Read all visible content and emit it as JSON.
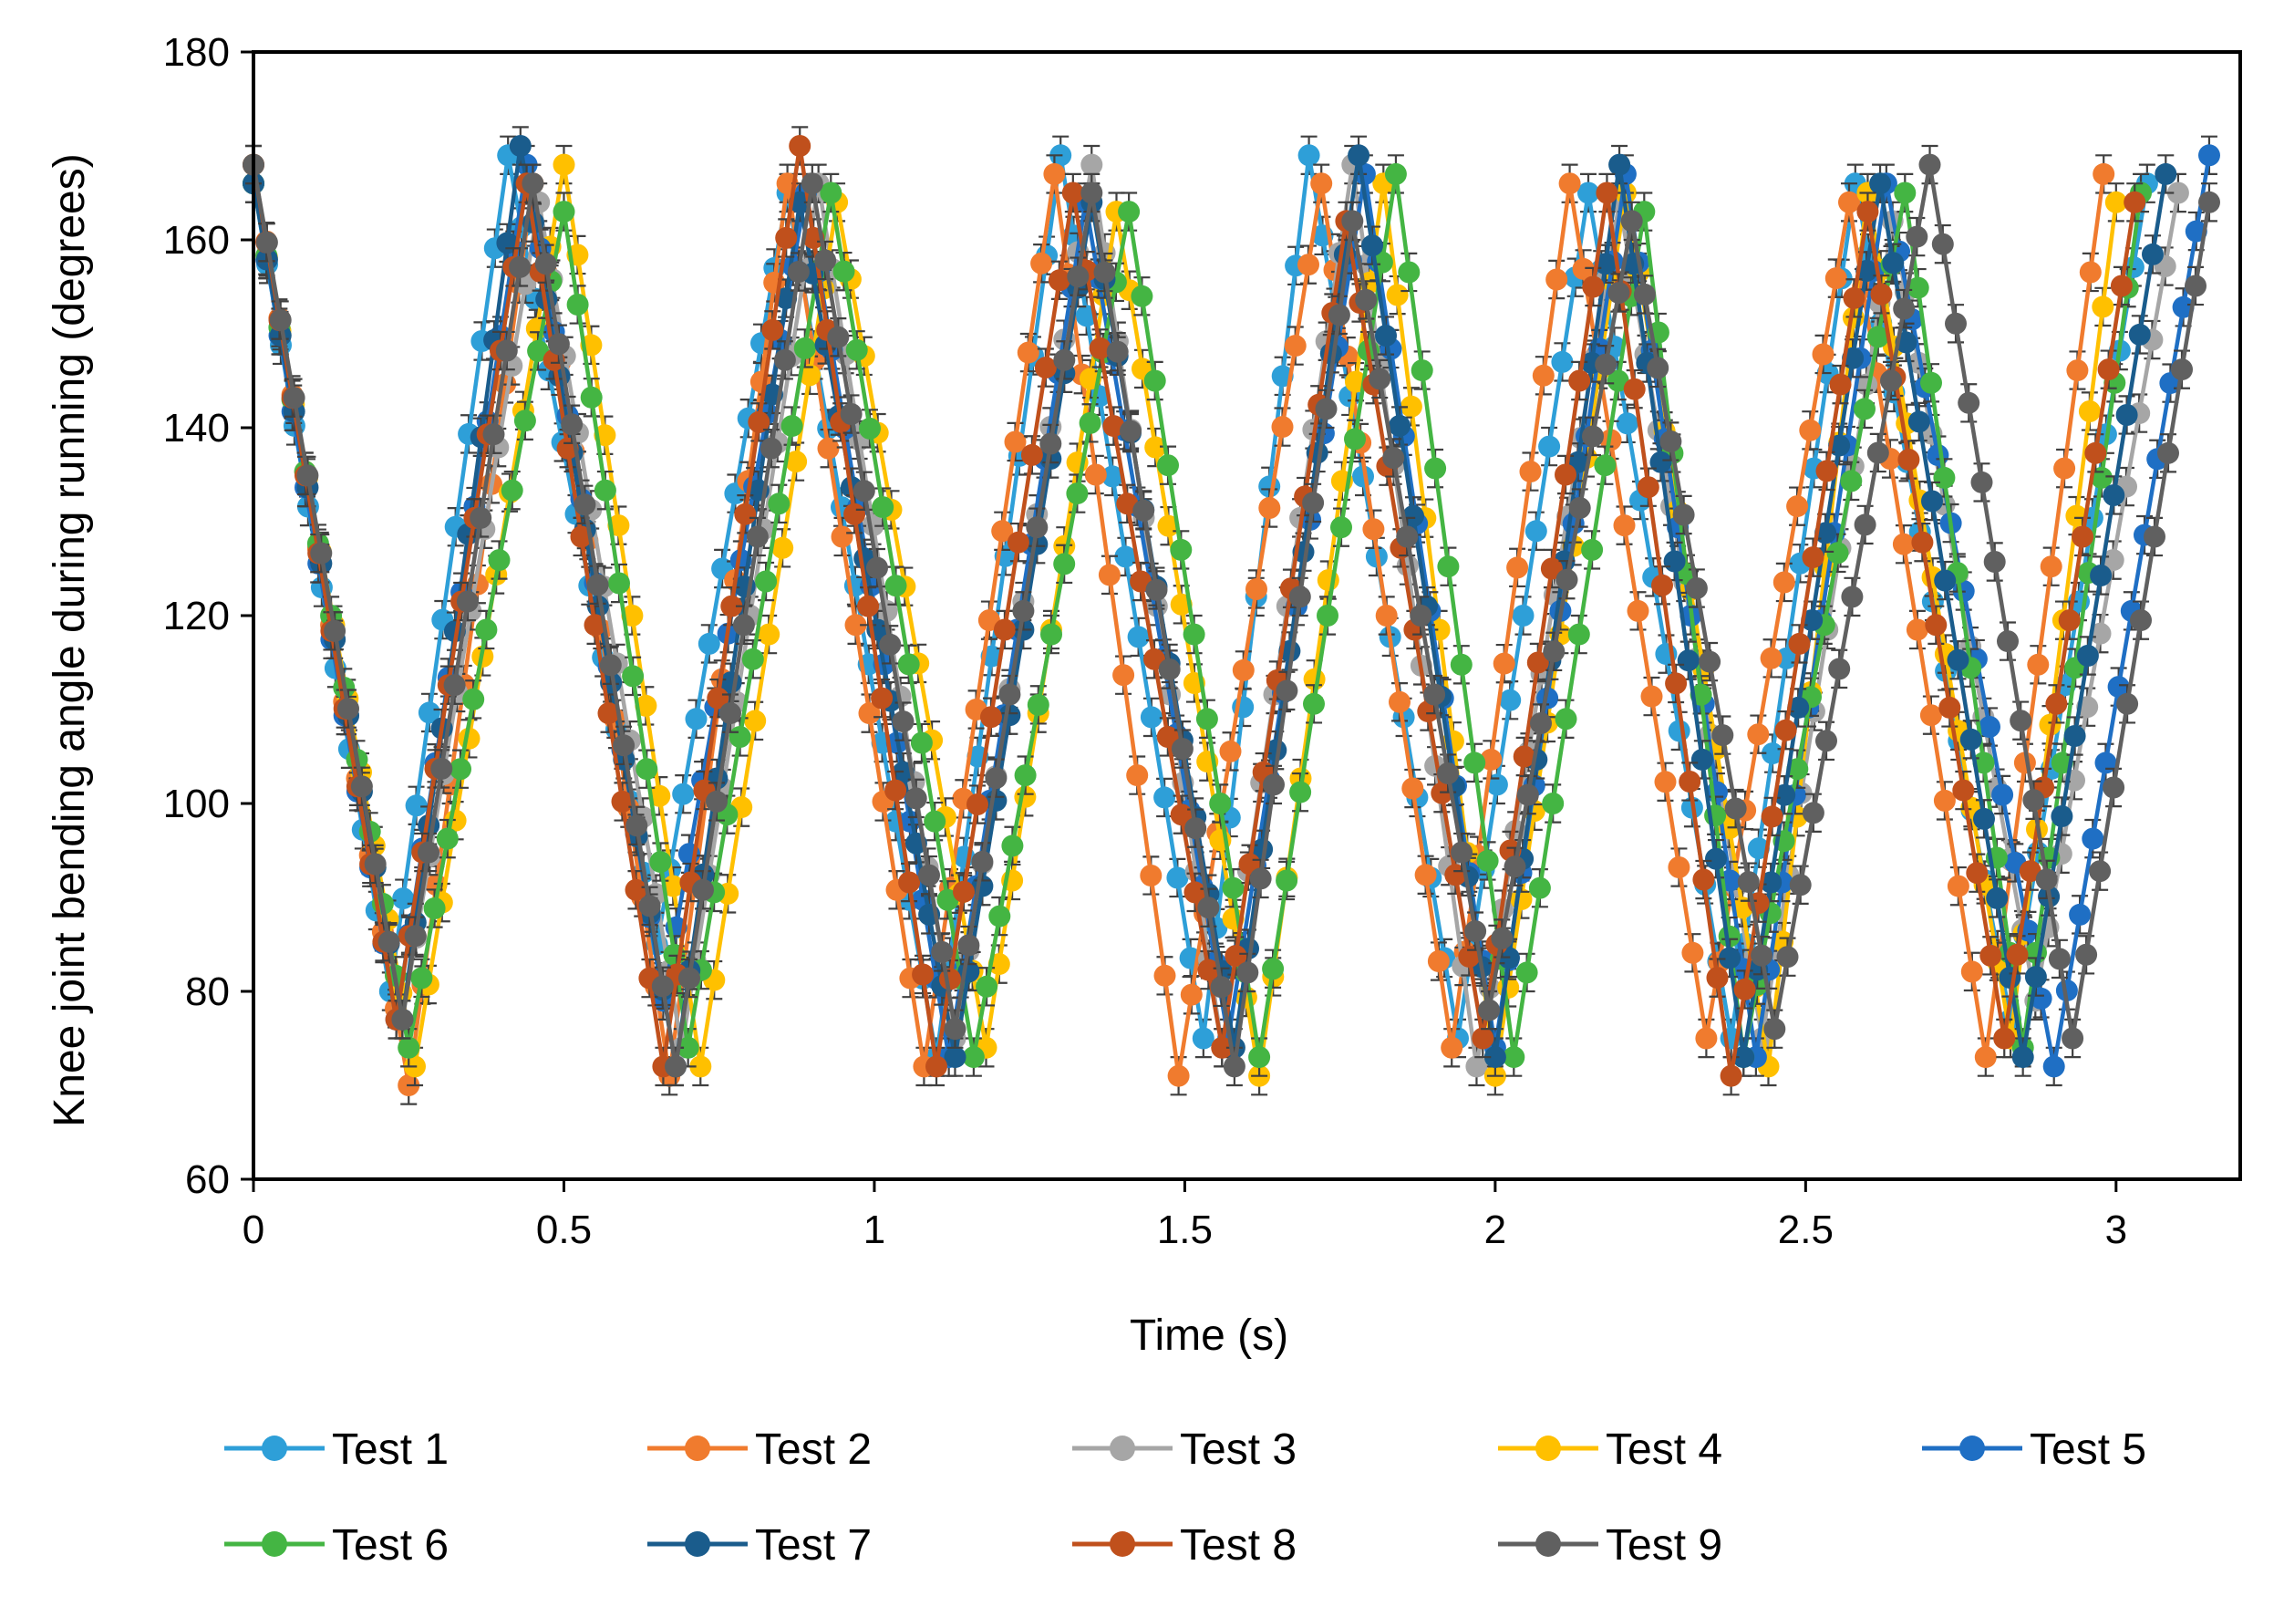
{
  "chart_data": {
    "type": "line",
    "title": "",
    "xlabel": "Time (s)",
    "ylabel": "Knee joint bending angle during running (degrees)",
    "xlim": [
      0,
      3.2
    ],
    "ylim": [
      60,
      180
    ],
    "xticks": [
      0,
      0.5,
      1,
      1.5,
      2,
      2.5,
      3
    ],
    "xtick_labels": [
      "0",
      "0.5",
      "1",
      "1.5",
      "2",
      "2.5",
      "3"
    ],
    "yticks": [
      60,
      80,
      100,
      120,
      140,
      160,
      180
    ],
    "ytick_labels": [
      "60",
      "80",
      "100",
      "120",
      "140",
      "160",
      "180"
    ],
    "error_bar": 2,
    "grid": false,
    "legend_position": "bottom",
    "series": [
      {
        "name": "Test 1",
        "color": "#2E9FD8",
        "x": [
          0,
          0.22,
          0.41,
          0.65,
          0.86,
          1.1,
          1.3,
          1.53,
          1.7,
          1.94,
          2.15,
          2.38,
          2.58,
          2.83,
          3.05
        ],
        "y": [
          166,
          80,
          169,
          85,
          165,
          73,
          169,
          75,
          169,
          75,
          165,
          75,
          166,
          77,
          166
        ]
      },
      {
        "name": "Test 2",
        "color": "#F07B2E",
        "x": [
          0,
          0.25,
          0.45,
          0.67,
          0.86,
          1.08,
          1.29,
          1.49,
          1.72,
          1.93,
          2.12,
          2.34,
          2.57,
          2.79,
          2.98
        ],
        "y": [
          168,
          70,
          166,
          71,
          166,
          72,
          167,
          71,
          166,
          74,
          166,
          75,
          164,
          73,
          167
        ]
      },
      {
        "name": "Test 3",
        "color": "#A6A6A6",
        "x": [
          0,
          0.24,
          0.46,
          0.69,
          0.91,
          1.13,
          1.35,
          1.56,
          1.77,
          1.97,
          2.2,
          2.43,
          2.64,
          2.87,
          3.1
        ],
        "y": [
          166,
          77,
          164,
          74,
          166,
          75,
          168,
          74,
          168,
          72,
          164,
          75,
          162,
          79,
          165
        ]
      },
      {
        "name": "Test 4",
        "color": "#FFC000",
        "x": [
          0,
          0.26,
          0.5,
          0.72,
          0.94,
          1.18,
          1.39,
          1.62,
          1.82,
          2.0,
          2.21,
          2.44,
          2.6,
          2.83,
          3.0
        ],
        "y": [
          166,
          72,
          168,
          72,
          164,
          74,
          163,
          71,
          166,
          71,
          165,
          72,
          165,
          75,
          164
        ]
      },
      {
        "name": "Test 5",
        "color": "#1F6FC4",
        "x": [
          0,
          0.23,
          0.44,
          0.66,
          0.89,
          1.12,
          1.34,
          1.57,
          1.79,
          2.0,
          2.21,
          2.42,
          2.63,
          2.9,
          3.15
        ],
        "y": [
          166,
          77,
          168,
          79,
          165,
          73,
          164,
          75,
          167,
          74,
          167,
          73,
          166,
          72,
          169
        ]
      },
      {
        "name": "Test 6",
        "color": "#44B543",
        "x": [
          0,
          0.25,
          0.5,
          0.7,
          0.93,
          1.16,
          1.41,
          1.62,
          1.84,
          2.03,
          2.24,
          2.4,
          2.66,
          2.85,
          3.04
        ],
        "y": [
          166,
          74,
          163,
          74,
          165,
          73,
          163,
          73,
          167,
          73,
          163,
          73,
          165,
          74,
          165
        ]
      },
      {
        "name": "Test 7",
        "color": "#1A5C8C",
        "x": [
          0,
          0.24,
          0.43,
          0.68,
          0.88,
          1.13,
          1.35,
          1.58,
          1.78,
          2.0,
          2.2,
          2.4,
          2.62,
          2.85,
          3.08
        ],
        "y": [
          166,
          77,
          170,
          72,
          164,
          73,
          164,
          74,
          169,
          73,
          168,
          73,
          166,
          73,
          167
        ]
      },
      {
        "name": "Test 8",
        "color": "#C0501C",
        "x": [
          0,
          0.23,
          0.44,
          0.66,
          0.88,
          1.1,
          1.32,
          1.56,
          1.76,
          1.98,
          2.18,
          2.38,
          2.6,
          2.82,
          3.03
        ],
        "y": [
          168,
          77,
          166,
          72,
          170,
          72,
          165,
          74,
          162,
          75,
          165,
          71,
          163,
          75,
          164
        ]
      },
      {
        "name": "Test 9",
        "color": "#606060",
        "x": [
          0,
          0.24,
          0.45,
          0.68,
          0.9,
          1.13,
          1.35,
          1.58,
          1.77,
          1.99,
          2.22,
          2.45,
          2.7,
          2.93,
          3.15
        ],
        "y": [
          168,
          77,
          166,
          72,
          166,
          76,
          165,
          72,
          162,
          78,
          162,
          76,
          168,
          75,
          164
        ]
      }
    ]
  }
}
